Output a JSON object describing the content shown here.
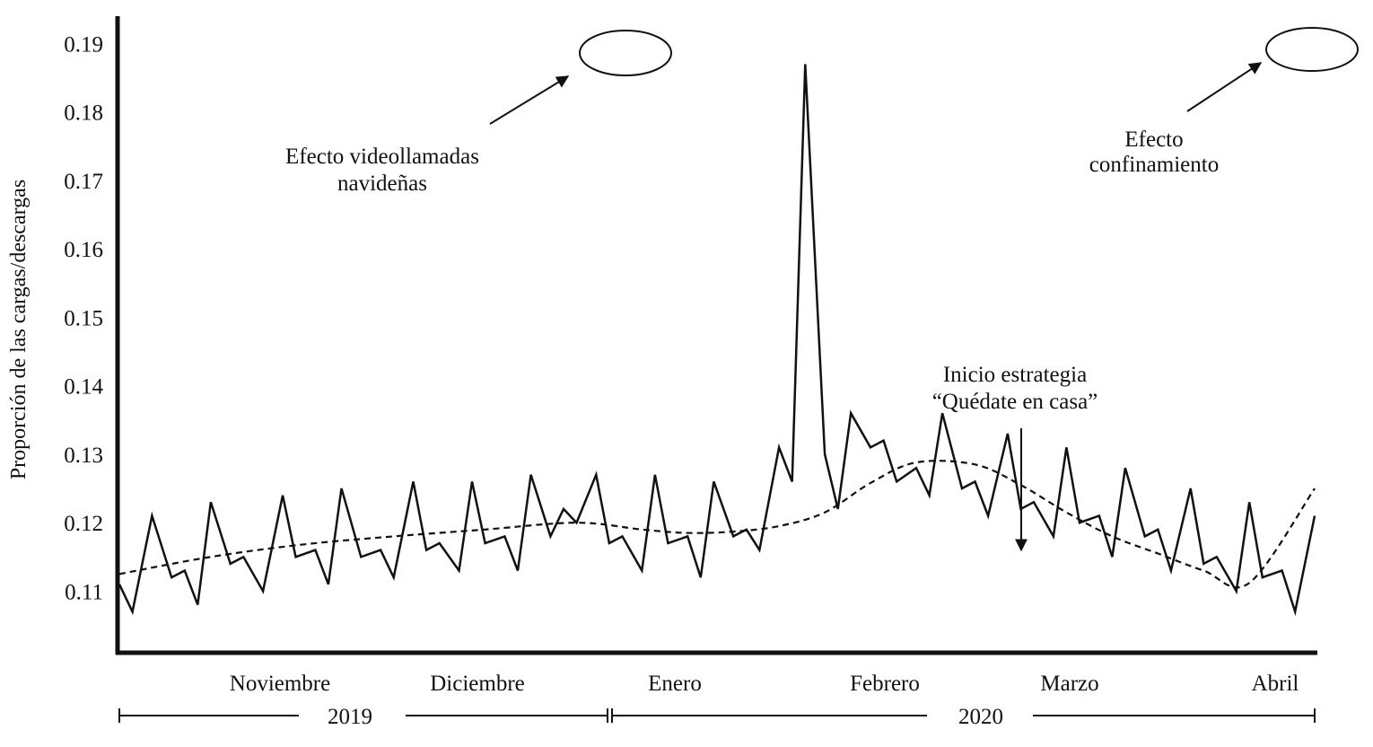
{
  "chart_data": {
    "type": "line",
    "title": "",
    "ylabel": "Proporción de las cargas/descargas",
    "yticks": [
      "0.11",
      "0.12",
      "0.13",
      "0.14",
      "0.15",
      "0.16",
      "0.17",
      "0.18",
      "0.19"
    ],
    "ylim": [
      0.101,
      0.194
    ],
    "x_start": "2019-10-22",
    "x_end": "2020-04-22",
    "months": [
      "Noviembre",
      "Diciembre",
      "Enero",
      "Febrero",
      "Marzo",
      "Abril"
    ],
    "years": [
      "2019",
      "2020"
    ],
    "series": [
      {
        "name": "",
        "style": "solid",
        "x": [
          "2019-10-22",
          "2019-10-24",
          "2019-10-27",
          "2019-10-30",
          "2019-11-01",
          "2019-11-03",
          "2019-11-05",
          "2019-11-08",
          "2019-11-10",
          "2019-11-13",
          "2019-11-16",
          "2019-11-18",
          "2019-11-21",
          "2019-11-23",
          "2019-11-25",
          "2019-11-28",
          "2019-12-01",
          "2019-12-03",
          "2019-12-06",
          "2019-12-08",
          "2019-12-10",
          "2019-12-13",
          "2019-12-15",
          "2019-12-17",
          "2019-12-20",
          "2019-12-22",
          "2019-12-24",
          "2019-12-27",
          "2019-12-29",
          "2019-12-31",
          "2020-01-03",
          "2020-01-05",
          "2020-01-07",
          "2020-01-10",
          "2020-01-12",
          "2020-01-14",
          "2020-01-17",
          "2020-01-19",
          "2020-01-21",
          "2020-01-24",
          "2020-01-26",
          "2020-01-28",
          "2020-01-31",
          "2020-02-02",
          "2020-02-04",
          "2020-02-07",
          "2020-02-09",
          "2020-02-11",
          "2020-02-14",
          "2020-02-16",
          "2020-02-18",
          "2020-02-21",
          "2020-02-23",
          "2020-02-25",
          "2020-02-28",
          "2020-03-01",
          "2020-03-03",
          "2020-03-06",
          "2020-03-08",
          "2020-03-10",
          "2020-03-13",
          "2020-03-15",
          "2020-03-17",
          "2020-03-20",
          "2020-03-22",
          "2020-03-24",
          "2020-03-27",
          "2020-03-29",
          "2020-03-31",
          "2020-04-03",
          "2020-04-05",
          "2020-04-07",
          "2020-04-10",
          "2020-04-12",
          "2020-04-14",
          "2020-04-17",
          "2020-04-19",
          "2020-04-22"
        ],
        "values": [
          0.111,
          0.107,
          0.121,
          0.112,
          0.113,
          0.108,
          0.123,
          0.114,
          0.115,
          0.11,
          0.124,
          0.115,
          0.116,
          0.111,
          0.125,
          0.115,
          0.116,
          0.112,
          0.126,
          0.116,
          0.117,
          0.113,
          0.126,
          0.117,
          0.118,
          0.113,
          0.127,
          0.118,
          0.122,
          0.12,
          0.127,
          0.117,
          0.118,
          0.113,
          0.127,
          0.117,
          0.118,
          0.112,
          0.126,
          0.118,
          0.119,
          0.116,
          0.131,
          0.126,
          0.187,
          0.13,
          0.122,
          0.136,
          0.131,
          0.132,
          0.126,
          0.128,
          0.124,
          0.136,
          0.125,
          0.126,
          0.121,
          0.133,
          0.122,
          0.123,
          0.118,
          0.131,
          0.12,
          0.121,
          0.115,
          0.128,
          0.118,
          0.119,
          0.113,
          0.125,
          0.114,
          0.115,
          0.11,
          0.123,
          0.112,
          0.113,
          0.107,
          0.121
        ]
      },
      {
        "name": "",
        "style": "dashed",
        "x": [
          "2019-10-22",
          "2019-11-05",
          "2019-11-19",
          "2019-12-03",
          "2019-12-17",
          "2019-12-31",
          "2020-01-10",
          "2020-01-17",
          "2020-01-24",
          "2020-01-31",
          "2020-02-07",
          "2020-02-14",
          "2020-02-21",
          "2020-03-01",
          "2020-03-08",
          "2020-03-15",
          "2020-03-22",
          "2020-03-29",
          "2020-04-05",
          "2020-04-12",
          "2020-04-22"
        ],
        "values": [
          0.1125,
          0.115,
          0.1168,
          0.118,
          0.119,
          0.12,
          0.119,
          0.1185,
          0.1187,
          0.1195,
          0.1215,
          0.1258,
          0.1288,
          0.1285,
          0.1255,
          0.1215,
          0.118,
          0.1155,
          0.113,
          0.1112,
          0.125
        ]
      }
    ]
  },
  "annotations": [
    {
      "lines": [
        "Efecto videollamadas",
        "navideñas"
      ]
    },
    {
      "lines": [
        "Efecto",
        "confinamiento"
      ]
    },
    {
      "lines": [
        "Inicio estrategia",
        "“Quédate en casa”"
      ]
    }
  ]
}
